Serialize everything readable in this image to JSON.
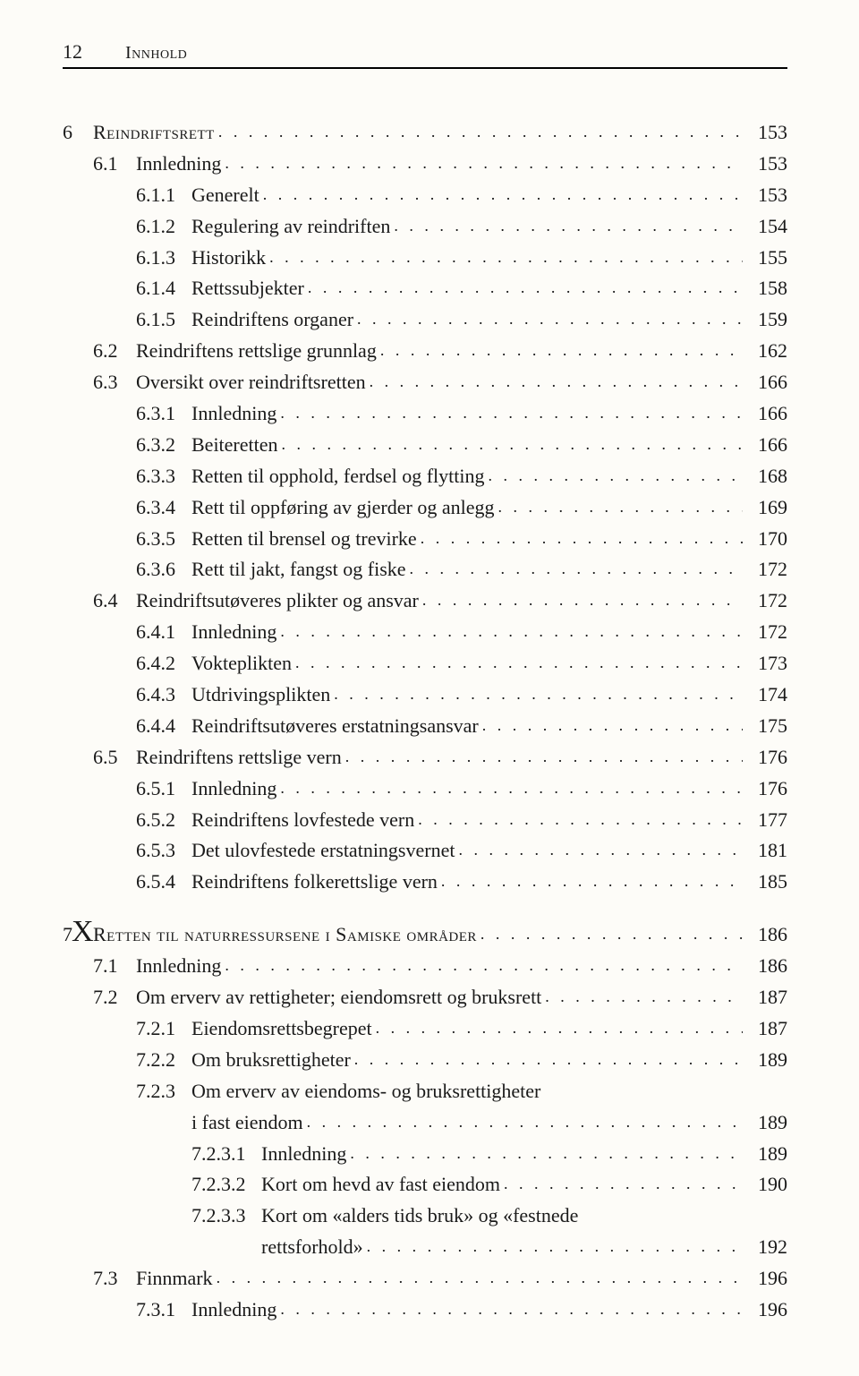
{
  "header": {
    "page_number": "12",
    "running_title": "Innhold"
  },
  "leader_dots": ". . . . . . . . . . . . . . . . . . . . . . . . . . . . . . . . . . . . . . . . . . . . . . . . . . . . . . . . . . . . . . .",
  "x_annotation": "X",
  "toc": [
    {
      "type": "chapter",
      "num": "6",
      "title": "Reindriftsrett",
      "page": "153"
    },
    {
      "type": "section",
      "num": "6.1",
      "title": "Innledning",
      "page": "153"
    },
    {
      "type": "subsection",
      "num": "6.1.1",
      "title": "Generelt",
      "page": "153"
    },
    {
      "type": "subsection",
      "num": "6.1.2",
      "title": "Regulering av reindriften",
      "page": "154"
    },
    {
      "type": "subsection",
      "num": "6.1.3",
      "title": "Historikk",
      "page": "155"
    },
    {
      "type": "subsection",
      "num": "6.1.4",
      "title": "Rettssubjekter",
      "page": "158"
    },
    {
      "type": "subsection",
      "num": "6.1.5",
      "title": "Reindriftens organer",
      "page": "159"
    },
    {
      "type": "section",
      "num": "6.2",
      "title": "Reindriftens rettslige grunnlag",
      "page": "162"
    },
    {
      "type": "section",
      "num": "6.3",
      "title": "Oversikt over reindriftsretten",
      "page": "166"
    },
    {
      "type": "subsection",
      "num": "6.3.1",
      "title": "Innledning",
      "page": "166"
    },
    {
      "type": "subsection",
      "num": "6.3.2",
      "title": "Beiteretten",
      "page": "166"
    },
    {
      "type": "subsection",
      "num": "6.3.3",
      "title": "Retten til opphold, ferdsel og flytting",
      "page": "168"
    },
    {
      "type": "subsection",
      "num": "6.3.4",
      "title": "Rett til oppføring av gjerder og anlegg",
      "page": "169"
    },
    {
      "type": "subsection",
      "num": "6.3.5",
      "title": "Retten til brensel og trevirke",
      "page": "170"
    },
    {
      "type": "subsection",
      "num": "6.3.6",
      "title": "Rett til jakt, fangst og fiske",
      "page": "172"
    },
    {
      "type": "section",
      "num": "6.4",
      "title": "Reindriftsutøveres plikter og ansvar",
      "page": "172"
    },
    {
      "type": "subsection",
      "num": "6.4.1",
      "title": "Innledning",
      "page": "172"
    },
    {
      "type": "subsection",
      "num": "6.4.2",
      "title": "Vokteplikten",
      "page": "173"
    },
    {
      "type": "subsection",
      "num": "6.4.3",
      "title": "Utdrivingsplikten",
      "page": "174"
    },
    {
      "type": "subsection",
      "num": "6.4.4",
      "title": "Reindriftsutøveres erstatningsansvar",
      "page": "175"
    },
    {
      "type": "section",
      "num": "6.5",
      "title": "Reindriftens rettslige vern",
      "page": "176"
    },
    {
      "type": "subsection",
      "num": "6.5.1",
      "title": "Innledning",
      "page": "176"
    },
    {
      "type": "subsection",
      "num": "6.5.2",
      "title": "Reindriftens lovfestede vern",
      "page": "177"
    },
    {
      "type": "subsection",
      "num": "6.5.3",
      "title": "Det ulovfestede erstatningsvernet",
      "page": "181"
    },
    {
      "type": "subsection",
      "num": "6.5.4",
      "title": "Reindriftens folkerettslige vern",
      "page": "185"
    },
    {
      "type": "gap"
    },
    {
      "type": "chapter",
      "num": "7",
      "title": "Retten til naturressursene i Samiske områder",
      "page": "186",
      "mark": true
    },
    {
      "type": "section",
      "num": "7.1",
      "title": "Innledning",
      "page": "186"
    },
    {
      "type": "section",
      "num": "7.2",
      "title": "Om erverv av rettigheter; eiendomsrett og bruksrett",
      "page": "187"
    },
    {
      "type": "subsection",
      "num": "7.2.1",
      "title": "Eiendomsrettsbegrepet",
      "page": "187"
    },
    {
      "type": "subsection",
      "num": "7.2.2",
      "title": "Om bruksrettigheter",
      "page": "189"
    },
    {
      "type": "subsection-noleader",
      "num": "7.2.3",
      "title": "Om erverv av eiendoms- og bruksrettigheter"
    },
    {
      "type": "continuation",
      "title": "i fast eiendom",
      "page": "189"
    },
    {
      "type": "subsubsection",
      "num": "7.2.3.1",
      "title": "Innledning",
      "page": "189"
    },
    {
      "type": "subsubsection",
      "num": "7.2.3.2",
      "title": "Kort om hevd av fast eiendom",
      "page": "190"
    },
    {
      "type": "subsubsection-noleader",
      "num": "7.2.3.3",
      "title": "Kort om «alders tids bruk» og «festnede"
    },
    {
      "type": "continuation4",
      "title": "rettsforhold»",
      "page": "192"
    },
    {
      "type": "section",
      "num": "7.3",
      "title": "Finnmark",
      "page": "196"
    },
    {
      "type": "subsection",
      "num": "7.3.1",
      "title": "Innledning",
      "page": "196"
    }
  ]
}
